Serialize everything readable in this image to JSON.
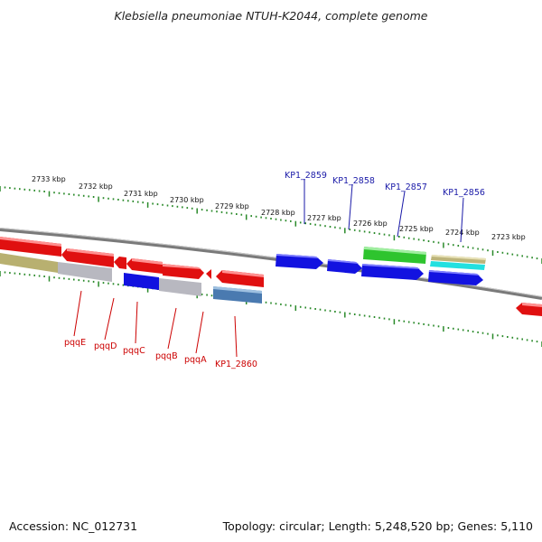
{
  "title": "Klebsiella pneumoniae NTUH-K2044, complete genome",
  "footer": {
    "accession": "Accession: NC_012731",
    "topology": "Topology: circular; Length: 5,248,520 bp; Genes: 5,110"
  },
  "scale_labels": [
    "2733 kbp",
    "2732 kbp",
    "2731 kbp",
    "2730 kbp",
    "2729 kbp",
    "2728 kbp",
    "2727 kbp",
    "2726 kbp",
    "2725 kbp",
    "2724 kbp",
    "2723 kbp"
  ],
  "gene_labels_top": [
    "KP1_2859",
    "KP1_2858",
    "KP1_2857",
    "KP1_2856"
  ],
  "gene_labels_bottom": [
    "pqqE",
    "pqqD",
    "pqqC",
    "pqqB",
    "pqqA",
    "KP1_2860"
  ],
  "colors": {
    "top_label": "#1a1aa8",
    "bottom_label": "#cc0000",
    "tick": "#2a8a2a",
    "backbone": "#8a8a8a",
    "red_gene": "#e01010",
    "blue_gene": "#1010e0",
    "green_gene": "#30c030",
    "cyan_gene": "#20e0e0",
    "olive_gene": "#b8b070",
    "gray_gene": "#b8b8c0",
    "steel_gene": "#4a7ab0"
  }
}
